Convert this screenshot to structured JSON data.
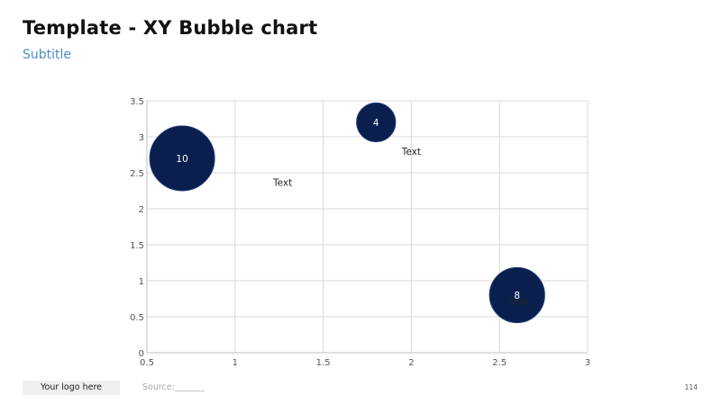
{
  "header": {
    "title": "Template - XY Bubble chart",
    "subtitle": "Subtitle"
  },
  "footer": {
    "logo_text": "Your logo here",
    "source_text": "Source:_______",
    "page_number": "114"
  },
  "chart_data": {
    "type": "scatter",
    "variant": "bubble",
    "title": "",
    "xlabel": "",
    "ylabel": "",
    "xlim": [
      0.5,
      3
    ],
    "ylim": [
      0,
      3.5
    ],
    "x_ticks": [
      0.5,
      1,
      1.5,
      2,
      2.5,
      3
    ],
    "x_tick_labels": [
      "0.5",
      "1",
      "1.5",
      "2",
      "2.5",
      "3"
    ],
    "y_ticks": [
      0,
      0.5,
      1,
      1.5,
      2,
      2.5,
      3,
      3.5
    ],
    "y_tick_labels": [
      "0",
      "0.5",
      "1",
      "1.5",
      "2",
      "2.5",
      "3",
      "3.5"
    ],
    "grid": true,
    "legend": "none",
    "bubble_color": "#0b1f4f",
    "points": [
      {
        "x": 0.7,
        "y": 2.7,
        "size": 10,
        "label": "10"
      },
      {
        "x": 1.8,
        "y": 3.2,
        "size": 4,
        "label": "4"
      },
      {
        "x": 2.6,
        "y": 0.8,
        "size": 8,
        "label": "8"
      }
    ],
    "annotations": [
      {
        "text": "Text",
        "x": 1.27,
        "y": 2.37
      },
      {
        "text": "Text",
        "x": 2.0,
        "y": 2.8
      },
      {
        "text": "Text",
        "x": 2.61,
        "y": 0.72
      }
    ]
  }
}
